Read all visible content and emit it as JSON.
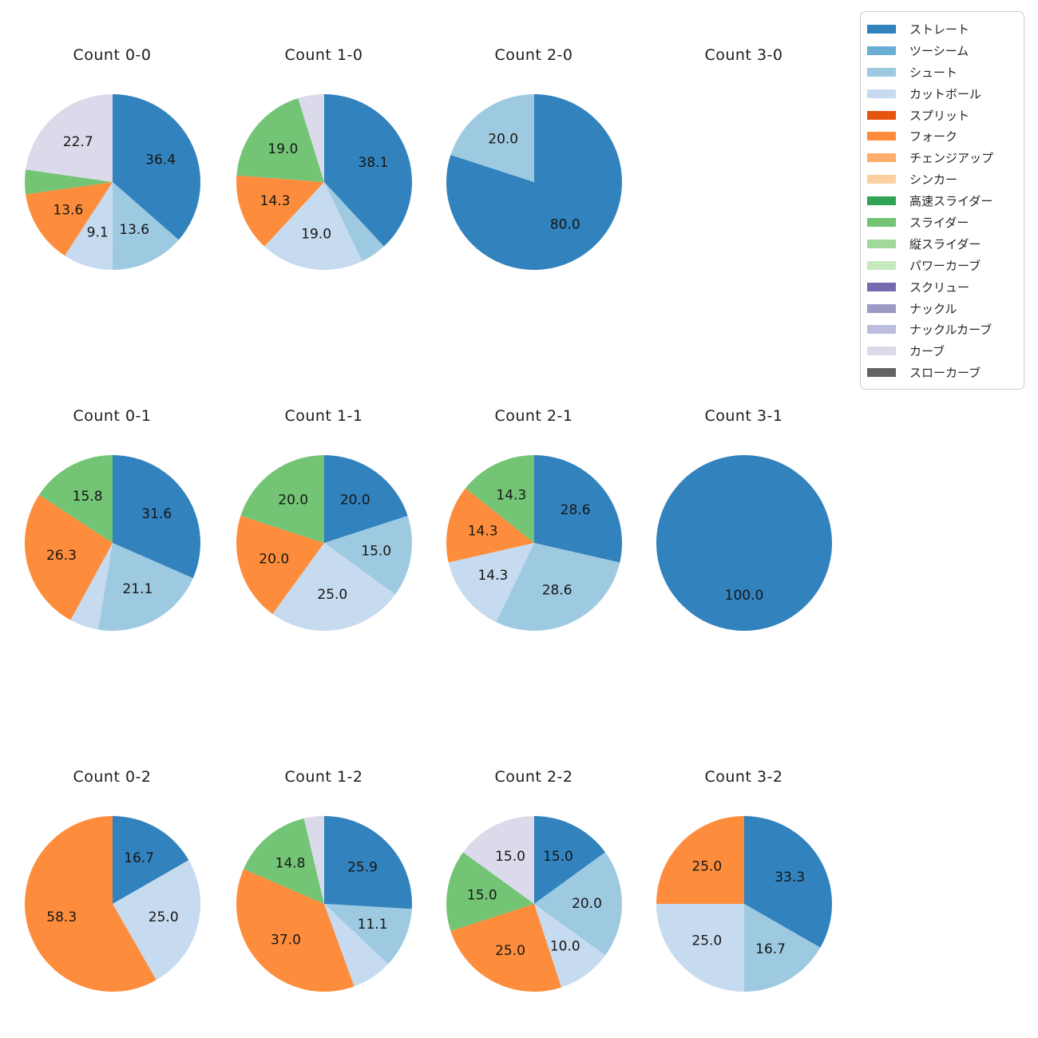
{
  "figure": {
    "background": "#ffffff",
    "grid": "4 columns x 3 rows of pie charts",
    "legend_position": "top-right"
  },
  "legend": {
    "items": [
      {
        "label": "ストレート",
        "color": "#3182bd"
      },
      {
        "label": "ツーシーム",
        "color": "#6baed6"
      },
      {
        "label": "シュート",
        "color": "#9ecae1"
      },
      {
        "label": "カットボール",
        "color": "#c6dbef"
      },
      {
        "label": "スプリット",
        "color": "#e6550d"
      },
      {
        "label": "フォーク",
        "color": "#fd8d3c"
      },
      {
        "label": "チェンジアップ",
        "color": "#fdae6b"
      },
      {
        "label": "シンカー",
        "color": "#fdd0a2"
      },
      {
        "label": "高速スライダー",
        "color": "#31a354"
      },
      {
        "label": "スライダー",
        "color": "#74c476"
      },
      {
        "label": "縦スライダー",
        "color": "#a1d99b"
      },
      {
        "label": "パワーカーブ",
        "color": "#c7e9c0"
      },
      {
        "label": "スクリュー",
        "color": "#756bb1"
      },
      {
        "label": "ナックル",
        "color": "#9e9ac8"
      },
      {
        "label": "ナックルカーブ",
        "color": "#bcbddc"
      },
      {
        "label": "カーブ",
        "color": "#dadaeb"
      },
      {
        "label": "スローカーブ",
        "color": "#636363"
      }
    ]
  },
  "chart_data": [
    {
      "type": "pie",
      "title": "Count 0-0",
      "start_angle_deg": 90,
      "clockwise": true,
      "labels": [
        "ストレート",
        "シュート",
        "カットボール",
        "フォーク",
        "スライダー",
        "カーブ"
      ],
      "values": [
        36.4,
        13.6,
        9.1,
        13.6,
        4.5,
        22.7
      ],
      "pct_labels": [
        "36.4",
        "13.6",
        "9.1",
        "13.6",
        "",
        "22.7"
      ]
    },
    {
      "type": "pie",
      "title": "Count 1-0",
      "start_angle_deg": 90,
      "clockwise": true,
      "labels": [
        "ストレート",
        "シュート",
        "カットボール",
        "フォーク",
        "スライダー",
        "カーブ"
      ],
      "values": [
        38.1,
        4.8,
        19.0,
        14.3,
        19.0,
        4.8
      ],
      "pct_labels": [
        "38.1",
        "",
        "19.0",
        "14.3",
        "19.0",
        ""
      ]
    },
    {
      "type": "pie",
      "title": "Count 2-0",
      "start_angle_deg": 90,
      "clockwise": true,
      "labels": [
        "ストレート",
        "シュート"
      ],
      "values": [
        80.0,
        20.0
      ],
      "pct_labels": [
        "80.0",
        "20.0"
      ]
    },
    {
      "type": "pie",
      "title": "Count 3-0",
      "start_angle_deg": 90,
      "clockwise": true,
      "labels": [],
      "values": [],
      "pct_labels": []
    },
    {
      "type": "pie",
      "title": "Count 0-1",
      "start_angle_deg": 90,
      "clockwise": true,
      "labels": [
        "ストレート",
        "シュート",
        "カットボール",
        "フォーク",
        "スライダー"
      ],
      "values": [
        31.6,
        21.1,
        5.3,
        26.3,
        15.8
      ],
      "pct_labels": [
        "31.6",
        "21.1",
        "",
        "26.3",
        "15.8"
      ]
    },
    {
      "type": "pie",
      "title": "Count 1-1",
      "start_angle_deg": 90,
      "clockwise": true,
      "labels": [
        "ストレート",
        "シュート",
        "カットボール",
        "フォーク",
        "スライダー"
      ],
      "values": [
        20.0,
        15.0,
        25.0,
        20.0,
        20.0
      ],
      "pct_labels": [
        "20.0",
        "15.0",
        "25.0",
        "20.0",
        "20.0"
      ]
    },
    {
      "type": "pie",
      "title": "Count 2-1",
      "start_angle_deg": 90,
      "clockwise": true,
      "labels": [
        "ストレート",
        "シュート",
        "カットボール",
        "フォーク",
        "スライダー"
      ],
      "values": [
        28.6,
        28.6,
        14.3,
        14.3,
        14.3
      ],
      "pct_labels": [
        "28.6",
        "28.6",
        "14.3",
        "14.3",
        "14.3"
      ]
    },
    {
      "type": "pie",
      "title": "Count 3-1",
      "start_angle_deg": 90,
      "clockwise": true,
      "labels": [
        "ストレート"
      ],
      "values": [
        100.0
      ],
      "pct_labels": [
        "100.0"
      ]
    },
    {
      "type": "pie",
      "title": "Count 0-2",
      "start_angle_deg": 90,
      "clockwise": true,
      "labels": [
        "ストレート",
        "カットボール",
        "フォーク"
      ],
      "values": [
        16.7,
        25.0,
        58.3
      ],
      "pct_labels": [
        "16.7",
        "25.0",
        "58.3"
      ]
    },
    {
      "type": "pie",
      "title": "Count 1-2",
      "start_angle_deg": 90,
      "clockwise": true,
      "labels": [
        "ストレート",
        "シュート",
        "カットボール",
        "フォーク",
        "スライダー",
        "カーブ"
      ],
      "values": [
        25.9,
        11.1,
        7.4,
        37.0,
        14.8,
        3.7
      ],
      "pct_labels": [
        "25.9",
        "11.1",
        "",
        "37.0",
        "14.8",
        ""
      ]
    },
    {
      "type": "pie",
      "title": "Count 2-2",
      "start_angle_deg": 90,
      "clockwise": true,
      "labels": [
        "ストレート",
        "シュート",
        "カットボール",
        "フォーク",
        "スライダー",
        "カーブ"
      ],
      "values": [
        15.0,
        20.0,
        10.0,
        25.0,
        15.0,
        15.0
      ],
      "pct_labels": [
        "15.0",
        "20.0",
        "10.0",
        "25.0",
        "15.0",
        "15.0"
      ]
    },
    {
      "type": "pie",
      "title": "Count 3-2",
      "start_angle_deg": 90,
      "clockwise": true,
      "labels": [
        "ストレート",
        "シュート",
        "カットボール",
        "フォーク"
      ],
      "values": [
        33.3,
        16.7,
        25.0,
        25.0
      ],
      "pct_labels": [
        "33.3",
        "16.7",
        "25.0",
        "25.0"
      ]
    }
  ]
}
